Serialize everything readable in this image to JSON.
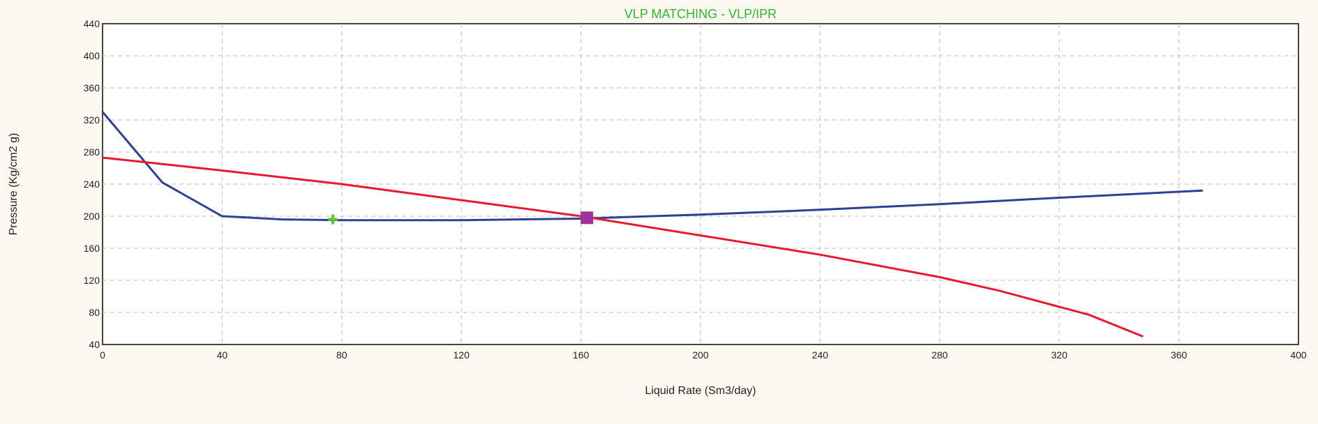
{
  "chart_data": {
    "type": "line",
    "title": "VLP MATCHING - VLP/IPR",
    "xlabel": "Liquid Rate  (Sm3/day)",
    "ylabel": "Pressure  (Kg/cm2 g)",
    "xlim": [
      0,
      400
    ],
    "ylim": [
      40,
      440
    ],
    "xticks": [
      0,
      40,
      80,
      120,
      160,
      200,
      240,
      280,
      320,
      360,
      400
    ],
    "yticks": [
      40,
      80,
      120,
      160,
      200,
      240,
      280,
      320,
      360,
      400,
      440
    ],
    "grid": true,
    "series": [
      {
        "color": "#2e3f96",
        "x": [
          0,
          20,
          40,
          50,
          60,
          80,
          120,
          160,
          200,
          240,
          280,
          320,
          368
        ],
        "y": [
          330,
          242,
          200,
          198,
          196,
          195,
          195,
          197,
          202,
          208,
          215,
          223,
          232
        ]
      },
      {
        "color": "#e8192c",
        "x": [
          0,
          40,
          80,
          120,
          160,
          200,
          240,
          280,
          300,
          330,
          348
        ],
        "y": [
          273,
          257,
          240,
          220,
          200,
          176,
          152,
          124,
          107,
          77,
          50
        ]
      }
    ],
    "markers": [
      {
        "shape": "square",
        "color": "#a0309a",
        "x": 162,
        "y": 198
      },
      {
        "shape": "plus",
        "color": "#5cc63a",
        "x": 77,
        "y": 196
      }
    ]
  }
}
